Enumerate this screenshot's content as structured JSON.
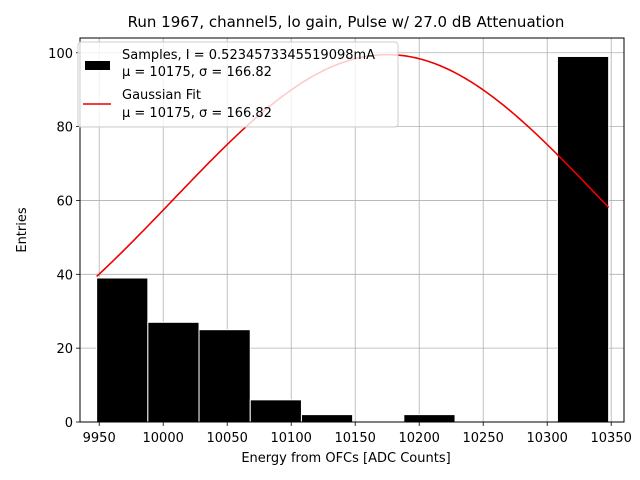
{
  "chart_data": {
    "type": "bar",
    "title": "Run 1967, channel5, lo gain, Pulse w/ 27.0 dB Attenuation",
    "xlabel": "Energy from OFCs [ADC Counts]",
    "ylabel": "Entries",
    "xlim": [
      9935,
      10360
    ],
    "ylim": [
      0,
      104
    ],
    "x_ticks": [
      9950,
      10000,
      10050,
      10100,
      10150,
      10200,
      10250,
      10300,
      10350
    ],
    "y_ticks": [
      0,
      20,
      40,
      60,
      80,
      100
    ],
    "grid": true,
    "legend_placement": "upper-left",
    "histogram": {
      "name": "Samples, I = 0.5234573345519098mA",
      "stats": "μ = 10175, σ = 166.82",
      "color": "#000000",
      "edge_color": "#ffffff",
      "bin_edges": [
        9948,
        9988,
        10028,
        10068,
        10108,
        10148,
        10188,
        10228,
        10268,
        10308,
        10348
      ],
      "counts": [
        39,
        27,
        25,
        6,
        2,
        0,
        2,
        0,
        0,
        99
      ]
    },
    "fit": {
      "name": "Gaussian Fit",
      "stats": "μ = 10175, σ = 166.82",
      "color": "#ee0000",
      "mu": 10175,
      "sigma": 166.82,
      "amplitude": 99.5,
      "x_range": [
        9948,
        10348
      ]
    }
  }
}
